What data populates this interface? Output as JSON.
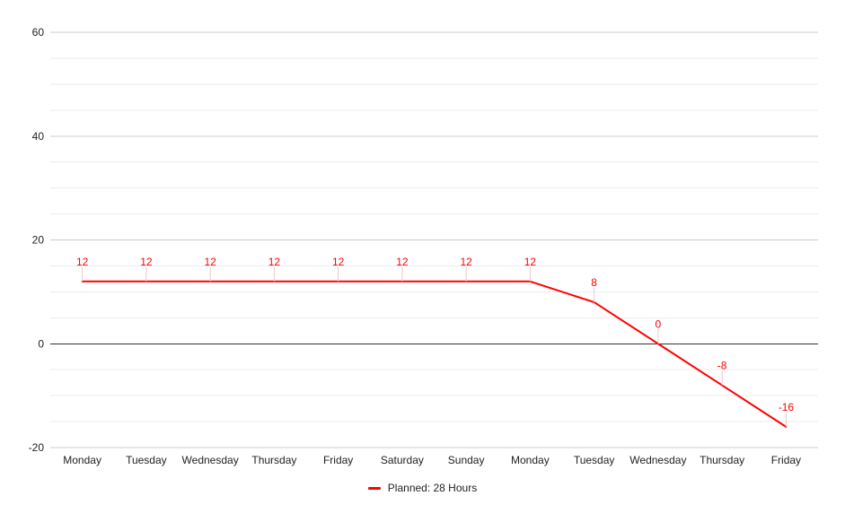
{
  "chart_data": {
    "type": "line",
    "title": "",
    "xlabel": "",
    "ylabel": "",
    "categories": [
      "Monday",
      "Tuesday",
      "Wednesday",
      "Thursday",
      "Friday",
      "Saturday",
      "Sunday",
      "Monday",
      "Tuesday",
      "Wednesday",
      "Thursday",
      "Friday"
    ],
    "series": [
      {
        "name": "Planned: 28 Hours",
        "color": "#ff0000",
        "values": [
          12,
          12,
          12,
          12,
          12,
          12,
          12,
          12,
          8,
          0,
          -8,
          -16
        ]
      }
    ],
    "ylim": [
      -20,
      60
    ],
    "yticks": [
      60,
      40,
      20,
      0,
      -20
    ],
    "grid": true,
    "data_labels": true,
    "legend_position": "bottom"
  }
}
